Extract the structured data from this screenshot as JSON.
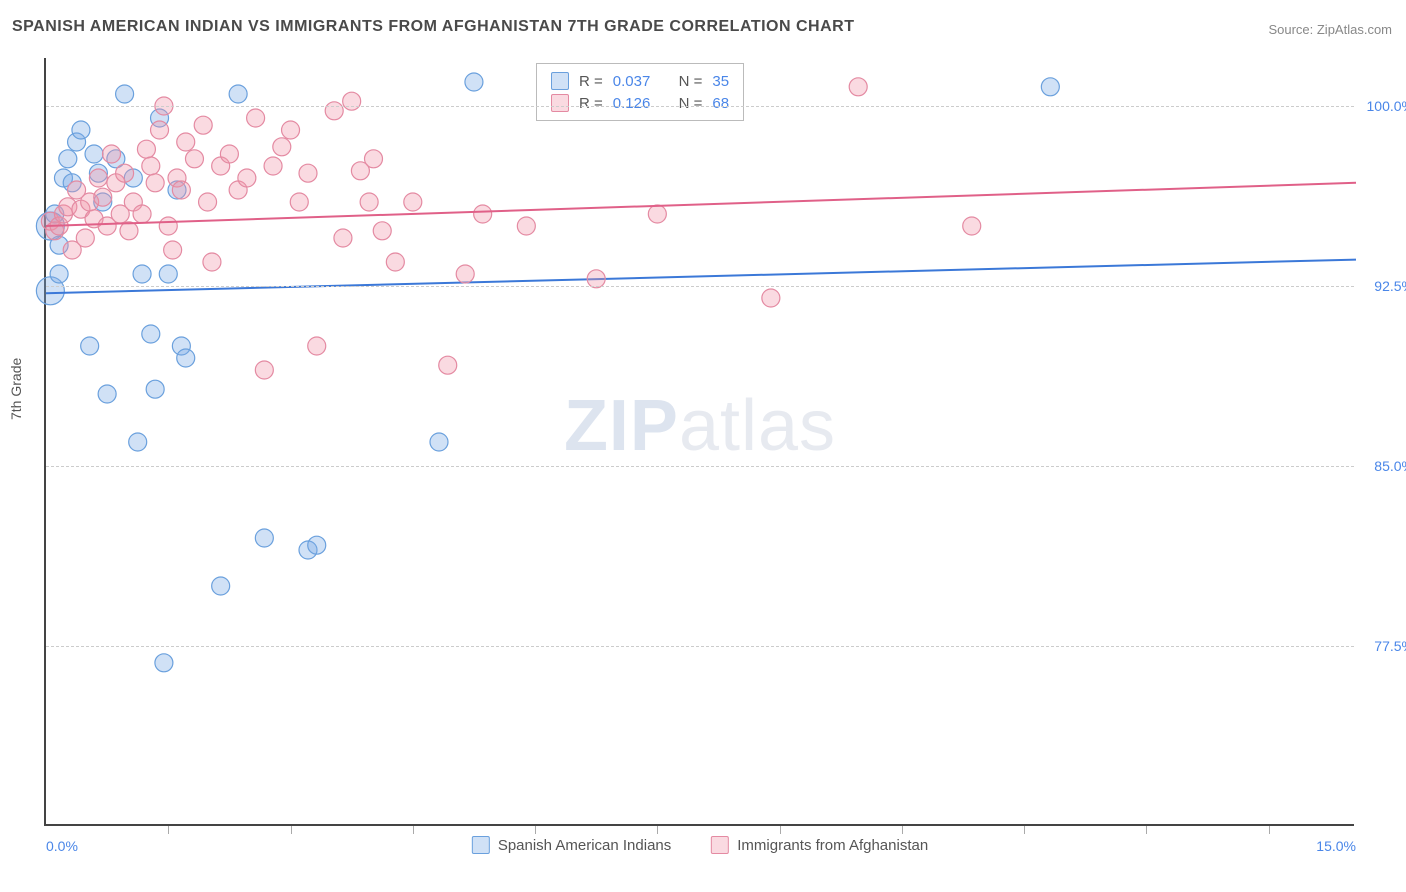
{
  "title": "SPANISH AMERICAN INDIAN VS IMMIGRANTS FROM AFGHANISTAN 7TH GRADE CORRELATION CHART",
  "source": "Source: ZipAtlas.com",
  "y_axis_label": "7th Grade",
  "watermark": {
    "bold": "ZIP",
    "light": "atlas"
  },
  "chart": {
    "type": "scatter",
    "xlim": [
      0,
      15
    ],
    "ylim": [
      70,
      102
    ],
    "x_ticks_minor": [
      1.4,
      2.8,
      4.2,
      5.6,
      7.0,
      8.4,
      9.8,
      11.2,
      12.6,
      14.0
    ],
    "x_tick_labels": [
      {
        "x": 0,
        "label": "0.0%",
        "align": "left"
      },
      {
        "x": 15,
        "label": "15.0%",
        "align": "right"
      }
    ],
    "y_grid": [
      77.5,
      85.0,
      92.5,
      100.0
    ],
    "y_tick_labels": [
      "77.5%",
      "85.0%",
      "92.5%",
      "100.0%"
    ],
    "background_color": "#ffffff",
    "grid_color": "#cccccc",
    "axis_color": "#444444",
    "marker_radius": 9,
    "marker_radius_large": 14,
    "series": [
      {
        "name": "Spanish American Indians",
        "fill": "rgba(120,170,230,0.35)",
        "stroke": "#6aa0dd",
        "trend": {
          "y_start": 92.2,
          "y_end": 93.6,
          "color": "#3b78d8",
          "width": 2
        },
        "R": "0.037",
        "N": "35",
        "points": [
          [
            0.05,
            95.0,
            14
          ],
          [
            0.05,
            92.3,
            14
          ],
          [
            0.1,
            95.5,
            9
          ],
          [
            0.15,
            94.2,
            9
          ],
          [
            0.15,
            93.0,
            9
          ],
          [
            0.2,
            97.0,
            9
          ],
          [
            0.25,
            97.8,
            9
          ],
          [
            0.3,
            96.8,
            9
          ],
          [
            0.35,
            98.5,
            9
          ],
          [
            0.4,
            99.0,
            9
          ],
          [
            0.5,
            90.0,
            9
          ],
          [
            0.55,
            98.0,
            9
          ],
          [
            0.6,
            97.2,
            9
          ],
          [
            0.65,
            96.0,
            9
          ],
          [
            0.7,
            88.0,
            9
          ],
          [
            0.8,
            97.8,
            9
          ],
          [
            0.9,
            100.5,
            9
          ],
          [
            1.0,
            97.0,
            9
          ],
          [
            1.05,
            86.0,
            9
          ],
          [
            1.1,
            93.0,
            9
          ],
          [
            1.2,
            90.5,
            9
          ],
          [
            1.25,
            88.2,
            9
          ],
          [
            1.3,
            99.5,
            9
          ],
          [
            1.35,
            76.8,
            9
          ],
          [
            1.4,
            93.0,
            9
          ],
          [
            1.5,
            96.5,
            9
          ],
          [
            1.55,
            90.0,
            9
          ],
          [
            1.6,
            89.5,
            9
          ],
          [
            2.0,
            80.0,
            9
          ],
          [
            2.2,
            100.5,
            9
          ],
          [
            2.5,
            82.0,
            9
          ],
          [
            3.0,
            81.5,
            9
          ],
          [
            3.1,
            81.7,
            9
          ],
          [
            4.5,
            86.0,
            9
          ],
          [
            4.9,
            101.0,
            9
          ],
          [
            11.5,
            100.8,
            9
          ]
        ]
      },
      {
        "name": "Immigrants from Afghanistan",
        "fill": "rgba(240,150,170,0.35)",
        "stroke": "#e48aa2",
        "trend": {
          "y_start": 95.0,
          "y_end": 96.8,
          "color": "#e06088",
          "width": 2
        },
        "R": "0.126",
        "N": "68",
        "points": [
          [
            0.05,
            95.2,
            9
          ],
          [
            0.1,
            94.8,
            9
          ],
          [
            0.15,
            95.0,
            9
          ],
          [
            0.2,
            95.5,
            9
          ],
          [
            0.25,
            95.8,
            9
          ],
          [
            0.3,
            94.0,
            9
          ],
          [
            0.35,
            96.5,
            9
          ],
          [
            0.4,
            95.7,
            9
          ],
          [
            0.45,
            94.5,
            9
          ],
          [
            0.5,
            96.0,
            9
          ],
          [
            0.55,
            95.3,
            9
          ],
          [
            0.6,
            97.0,
            9
          ],
          [
            0.65,
            96.2,
            9
          ],
          [
            0.7,
            95.0,
            9
          ],
          [
            0.75,
            98.0,
            9
          ],
          [
            0.8,
            96.8,
            9
          ],
          [
            0.85,
            95.5,
            9
          ],
          [
            0.9,
            97.2,
            9
          ],
          [
            0.95,
            94.8,
            9
          ],
          [
            1.0,
            96.0,
            9
          ],
          [
            1.1,
            95.5,
            9
          ],
          [
            1.15,
            98.2,
            9
          ],
          [
            1.2,
            97.5,
            9
          ],
          [
            1.25,
            96.8,
            9
          ],
          [
            1.3,
            99.0,
            9
          ],
          [
            1.35,
            100.0,
            9
          ],
          [
            1.4,
            95.0,
            9
          ],
          [
            1.45,
            94.0,
            9
          ],
          [
            1.5,
            97.0,
            9
          ],
          [
            1.55,
            96.5,
            9
          ],
          [
            1.6,
            98.5,
            9
          ],
          [
            1.7,
            97.8,
            9
          ],
          [
            1.8,
            99.2,
            9
          ],
          [
            1.85,
            96.0,
            9
          ],
          [
            1.9,
            93.5,
            9
          ],
          [
            2.0,
            97.5,
            9
          ],
          [
            2.1,
            98.0,
            9
          ],
          [
            2.2,
            96.5,
            9
          ],
          [
            2.3,
            97.0,
            9
          ],
          [
            2.4,
            99.5,
            9
          ],
          [
            2.5,
            89.0,
            9
          ],
          [
            2.6,
            97.5,
            9
          ],
          [
            2.7,
            98.3,
            9
          ],
          [
            2.8,
            99.0,
            9
          ],
          [
            2.9,
            96.0,
            9
          ],
          [
            3.0,
            97.2,
            9
          ],
          [
            3.1,
            90.0,
            9
          ],
          [
            3.3,
            99.8,
            9
          ],
          [
            3.4,
            94.5,
            9
          ],
          [
            3.5,
            100.2,
            9
          ],
          [
            3.6,
            97.3,
            9
          ],
          [
            3.7,
            96.0,
            9
          ],
          [
            3.75,
            97.8,
            9
          ],
          [
            3.85,
            94.8,
            9
          ],
          [
            4.0,
            93.5,
            9
          ],
          [
            4.2,
            96.0,
            9
          ],
          [
            4.6,
            89.2,
            9
          ],
          [
            4.8,
            93.0,
            9
          ],
          [
            5.0,
            95.5,
            9
          ],
          [
            5.5,
            95.0,
            9
          ],
          [
            6.1,
            100.8,
            9
          ],
          [
            6.3,
            92.8,
            9
          ],
          [
            7.0,
            95.5,
            9
          ],
          [
            8.3,
            92.0,
            9
          ],
          [
            9.3,
            100.8,
            9
          ],
          [
            10.6,
            95.0,
            9
          ]
        ]
      }
    ]
  },
  "stats_box": {
    "label_R": "R =",
    "label_N": "N ="
  },
  "bottom_legend": {
    "series1": "Spanish American Indians",
    "series2": "Immigrants from Afghanistan"
  }
}
